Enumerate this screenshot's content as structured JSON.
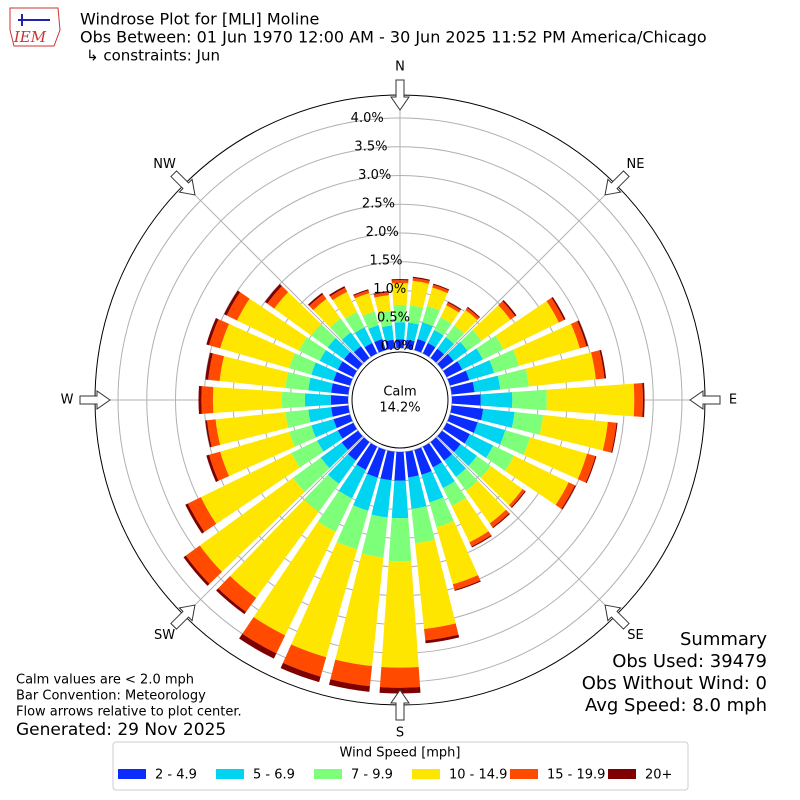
{
  "chart_data": {
    "type": "windrose",
    "logo": "IEM",
    "title": "Windrose Plot for [MLI] Moline",
    "subtitle": "Obs Between: 01 Jun 1970 12:00 AM - 30 Jun 2025 11:52 PM America/Chicago",
    "constraints": "↳ constraints: Jun",
    "compass_labels": [
      "N",
      "NE",
      "E",
      "SE",
      "S",
      "SW",
      "W",
      "NW"
    ],
    "categories": [
      null,
      null,
      null,
      null,
      null,
      null,
      null,
      null,
      null,
      null,
      null,
      null,
      null,
      null,
      null,
      null,
      null,
      null,
      null,
      null,
      null,
      null,
      null,
      null,
      null,
      null,
      null,
      null,
      null,
      null,
      null,
      null,
      null,
      null,
      null,
      null
    ],
    "rlim": [
      0,
      4.4
    ],
    "rticks": [
      {
        "value": 0,
        "label": "0.0%"
      },
      {
        "value": 0.5,
        "label": "0.5%"
      },
      {
        "value": 1,
        "label": "1.0%"
      },
      {
        "value": 1.5,
        "label": "1.5%"
      },
      {
        "value": 2,
        "label": "2.0%"
      },
      {
        "value": 2.5,
        "label": "2.5%"
      },
      {
        "value": 3,
        "label": "3.0%"
      },
      {
        "value": 3.5,
        "label": "3.5%"
      },
      {
        "value": 4,
        "label": "4.0%"
      }
    ],
    "grid": true,
    "calm_label": "Calm",
    "calm_value": "14.2%",
    "series": [
      {
        "name": "2 - 4.9",
        "color": "#0a2cff",
        "values": [
          0.15,
          0.15,
          0.2,
          0.2,
          0.2,
          0.25,
          0.3,
          0.35,
          0.4,
          0.5,
          0.55,
          0.5,
          0.45,
          0.4,
          0.4,
          0.4,
          0.45,
          0.45,
          0.5,
          0.5,
          0.5,
          0.45,
          0.4,
          0.35,
          0.3,
          0.3,
          0.3,
          0.3,
          0.3,
          0.3,
          0.3,
          0.3,
          0.25,
          0.2,
          0.2,
          0.15
        ]
      },
      {
        "name": "5 - 6.9",
        "color": "#00d4f0",
        "values": [
          0.3,
          0.3,
          0.3,
          0.25,
          0.25,
          0.3,
          0.4,
          0.45,
          0.45,
          0.55,
          0.55,
          0.5,
          0.45,
          0.35,
          0.35,
          0.4,
          0.5,
          0.55,
          0.65,
          0.65,
          0.6,
          0.55,
          0.5,
          0.45,
          0.4,
          0.4,
          0.4,
          0.45,
          0.4,
          0.4,
          0.35,
          0.35,
          0.3,
          0.3,
          0.25,
          0.25
        ]
      },
      {
        "name": "7 - 9.9",
        "color": "#7dff7a",
        "values": [
          0.3,
          0.3,
          0.3,
          0.25,
          0.25,
          0.3,
          0.4,
          0.45,
          0.5,
          0.6,
          0.5,
          0.45,
          0.4,
          0.3,
          0.3,
          0.35,
          0.45,
          0.6,
          0.75,
          0.7,
          0.7,
          0.65,
          0.6,
          0.6,
          0.5,
          0.4,
          0.4,
          0.4,
          0.4,
          0.4,
          0.4,
          0.35,
          0.3,
          0.3,
          0.25,
          0.25
        ]
      },
      {
        "name": "10 - 14.9",
        "color": "#ffe600",
        "values": [
          0.38,
          0.43,
          0.33,
          0.23,
          0.33,
          0.62,
          1.07,
          1.1,
          1.17,
          1.52,
          1.13,
          1.03,
          1.06,
          0.68,
          0.7,
          0.7,
          1.03,
          1.5,
          1.85,
          1.9,
          1.95,
          2.0,
          1.85,
          2.0,
          1.75,
          1.25,
          1.22,
          1.2,
          1.15,
          1.25,
          1.2,
          0.8,
          0.42,
          0.39,
          0.33,
          0.28
        ]
      },
      {
        "name": "15 - 19.9",
        "color": "#ff4a00",
        "values": [
          0.05,
          0.05,
          0.05,
          0.05,
          0.05,
          0.1,
          0.1,
          0.12,
          0.15,
          0.15,
          0.15,
          0.15,
          0.12,
          0.05,
          0.08,
          0.08,
          0.1,
          0.2,
          0.35,
          0.35,
          0.35,
          0.35,
          0.3,
          0.3,
          0.25,
          0.2,
          0.15,
          0.2,
          0.2,
          0.2,
          0.2,
          0.15,
          0.1,
          0.08,
          0.05,
          0.05
        ]
      },
      {
        "name": "20+",
        "color": "#7f0000",
        "values": [
          0.02,
          0.02,
          0.02,
          0.02,
          0.02,
          0.03,
          0.03,
          0.03,
          0.03,
          0.03,
          0.02,
          0.02,
          0.02,
          0.02,
          0.02,
          0.02,
          0.02,
          0.05,
          0.1,
          0.1,
          0.1,
          0.1,
          0.05,
          0.05,
          0.05,
          0.05,
          0.03,
          0.05,
          0.05,
          0.05,
          0.05,
          0.05,
          0.03,
          0.03,
          0.02,
          0.02
        ]
      }
    ],
    "legend_title": "Wind Speed [mph]",
    "notes": [
      "Calm values are < 2.0 mph",
      "Bar Convention: Meteorology",
      "Flow arrows relative to plot center."
    ],
    "generated": "Generated: 29 Nov 2025",
    "summary": [
      "Summary",
      "Obs Used: 39479",
      "Obs Without Wind: 0",
      "Avg Speed: 8.0 mph"
    ]
  }
}
